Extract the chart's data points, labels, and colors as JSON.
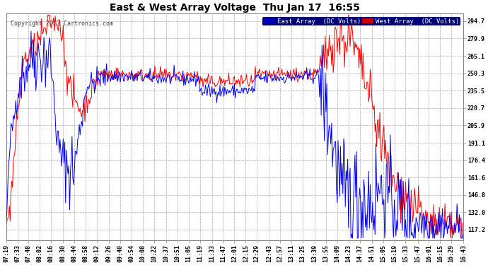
{
  "title": "East & West Array Voltage  Thu Jan 17  16:55",
  "copyright": "Copyright 2013 Cartronics.com",
  "legend_east": "East Array  (DC Volts)",
  "legend_west": "West Array  (DC Volts)",
  "east_color": "#0000ff",
  "west_color": "#ff0000",
  "legend_east_bg": "#0000bb",
  "legend_west_bg": "#cc0000",
  "yticks": [
    294.7,
    279.9,
    265.1,
    250.3,
    235.5,
    220.7,
    205.9,
    191.1,
    176.4,
    161.6,
    146.8,
    132.0,
    117.2
  ],
  "ylim": [
    108,
    301
  ],
  "background_color": "#ffffff",
  "plot_bg_color": "#ffffff",
  "grid_color": "#aaaaaa",
  "x_labels": [
    "07:19",
    "07:33",
    "07:48",
    "08:02",
    "08:16",
    "08:30",
    "08:44",
    "08:58",
    "09:12",
    "09:26",
    "09:40",
    "09:54",
    "10:08",
    "10:22",
    "10:37",
    "10:51",
    "11:05",
    "11:19",
    "11:33",
    "11:47",
    "12:01",
    "12:15",
    "12:29",
    "12:43",
    "12:57",
    "13:11",
    "13:25",
    "13:39",
    "13:55",
    "14:09",
    "14:23",
    "14:37",
    "14:51",
    "15:05",
    "15:19",
    "15:33",
    "15:47",
    "16:01",
    "16:15",
    "16:29",
    "16:43"
  ],
  "title_fontsize": 10,
  "tick_fontsize": 6,
  "copyright_fontsize": 6
}
